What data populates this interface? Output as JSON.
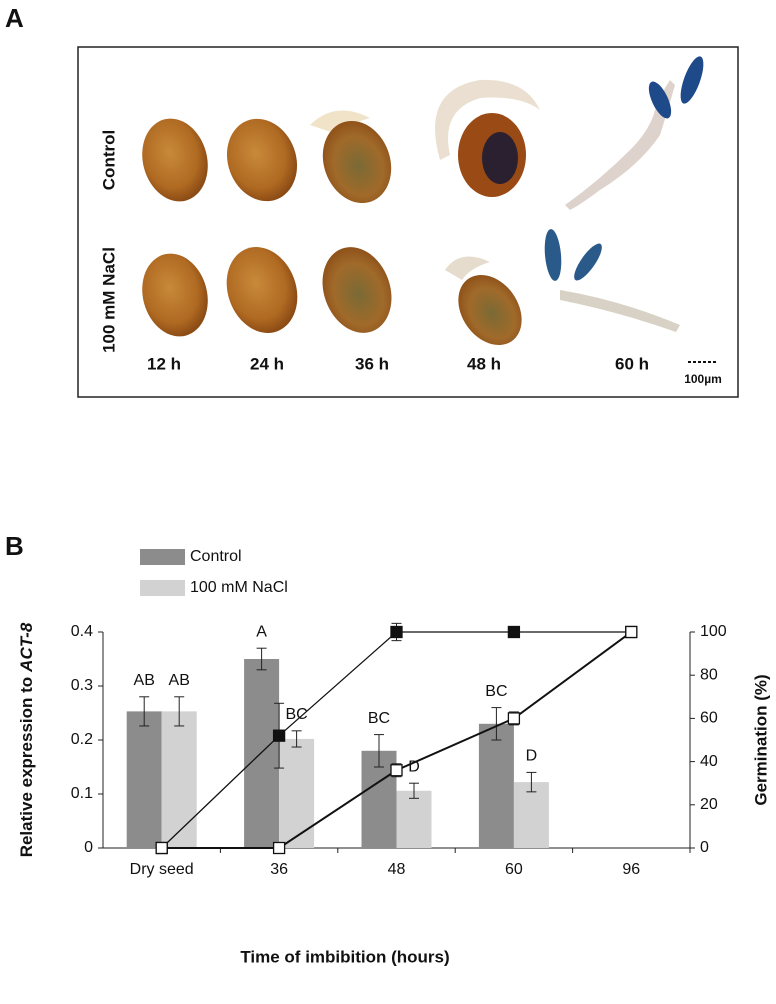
{
  "panel_a": {
    "label": "A",
    "rows": [
      "Control",
      "100 mM NaCl"
    ],
    "times": [
      "12 h",
      "24 h",
      "36 h",
      "48 h",
      "60 h"
    ],
    "scale_bar": "100µm"
  },
  "chart_data": {
    "type": "bar",
    "panel_label": "B",
    "categories": [
      "Dry seed",
      "36",
      "48",
      "60",
      "96"
    ],
    "x_label": "Time of imbibition (hours)",
    "y_label": [
      "Relative expression to",
      "ACT-8"
    ],
    "y2_label": "Germination (%)",
    "ylim": [
      0,
      0.4
    ],
    "yticks": [
      0,
      0.1,
      0.2,
      0.3,
      0.4
    ],
    "y2lim": [
      0,
      100
    ],
    "y2ticks": [
      0,
      20,
      40,
      60,
      80,
      100
    ],
    "series": [
      {
        "name": "Control",
        "color": "#8c8c8c",
        "values": [
          0.253,
          0.35,
          0.18,
          0.23,
          null
        ],
        "errors": [
          0.027,
          0.02,
          0.03,
          0.03,
          null
        ],
        "letters": [
          "AB",
          "A",
          "BC",
          "BC",
          null
        ]
      },
      {
        "name": "100 mM NaCl",
        "color": "#d2d2d2",
        "values": [
          0.253,
          0.202,
          0.106,
          0.122,
          null
        ],
        "errors": [
          0.027,
          0.015,
          0.014,
          0.018,
          null
        ],
        "letters": [
          "AB",
          "BC",
          "D",
          "D",
          null
        ]
      }
    ],
    "lines": [
      {
        "axis": "y2",
        "marker": "filled",
        "values": [
          0,
          52,
          100,
          100,
          100
        ],
        "errors": [
          null,
          15,
          4,
          null,
          null
        ]
      },
      {
        "axis": "y2",
        "marker": "open",
        "values": [
          0,
          0,
          36,
          60,
          100
        ],
        "errors": [
          null,
          null,
          3,
          3,
          2
        ]
      }
    ]
  }
}
